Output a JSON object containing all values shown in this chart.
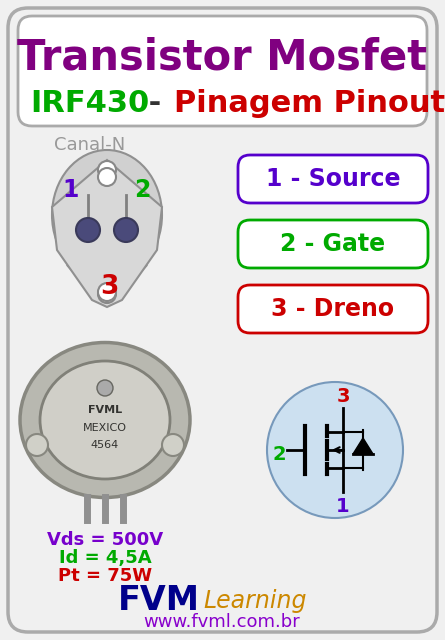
{
  "bg_color": "#f0f0f0",
  "border_color": "#aaaaaa",
  "title1": "Transistor Mosfet",
  "title1_color": "#800080",
  "title2_green": "IRF430",
  "title2_dash": " - ",
  "title2_red": "Pinagem Pinout",
  "title2_green_color": "#00aa00",
  "title2_red_color": "#cc0000",
  "canal_n": "Canal-N",
  "canal_n_color": "#999999",
  "pin1_label": "1",
  "pin1_color": "#5500cc",
  "pin2_label": "2",
  "pin2_color": "#00aa00",
  "pin3_label": "3",
  "pin3_color": "#cc0000",
  "box1_text": "1 - Source",
  "box1_color": "#5500cc",
  "box2_text": "2 - Gate",
  "box2_color": "#00aa00",
  "box3_text": "3 - Dreno",
  "box3_color": "#cc0000",
  "specs_vds": "Vds = 500V",
  "specs_id": "Id = 4,5A",
  "specs_pt": "Pt = 75W",
  "specs_vds_color": "#7700cc",
  "specs_id_color": "#00aa00",
  "specs_pt_color": "#cc0000",
  "fvm_color": "#00008b",
  "learning_color": "#cc8800",
  "url_text": "www.fvml.com.br",
  "url_color": "#8800cc"
}
